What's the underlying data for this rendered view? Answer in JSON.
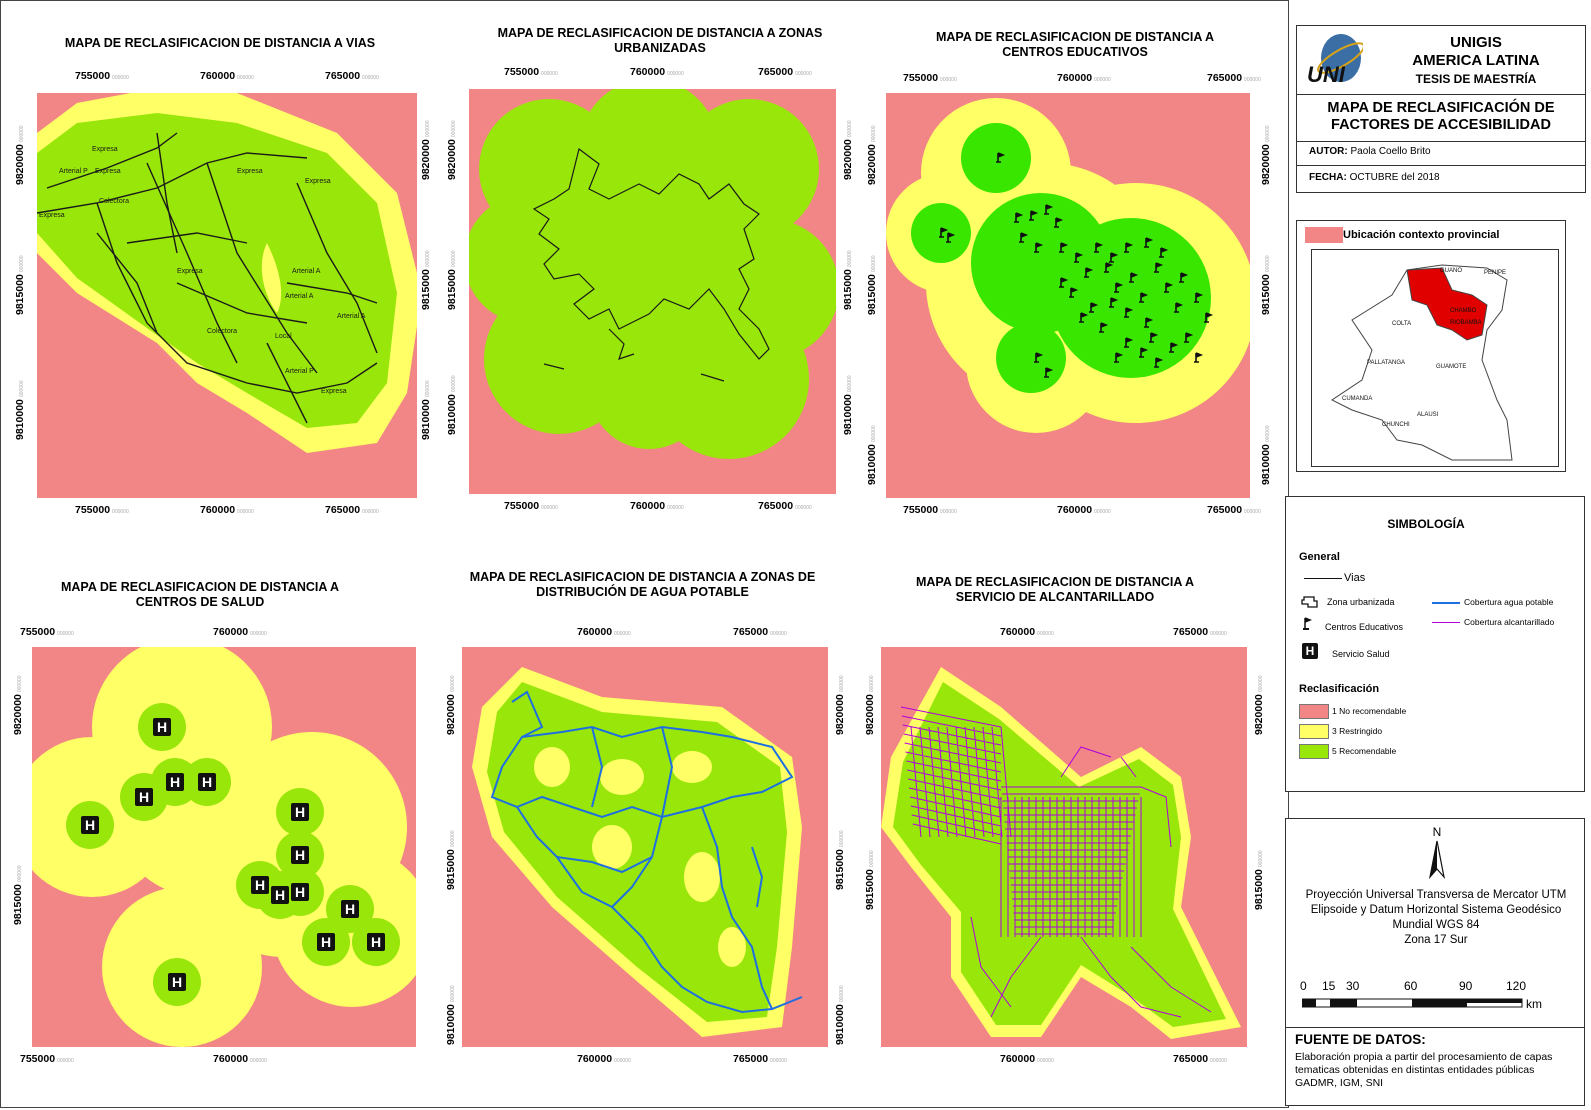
{
  "maps": [
    {
      "title": "MAPA DE RECLASIFICACION DE DISTANCIA A VIAS",
      "x_top": [
        "755000",
        "760000",
        "765000"
      ],
      "x_bottom": [
        "755000",
        "760000",
        "765000"
      ],
      "y_left": [
        "9820000",
        "9815000",
        "9810000"
      ],
      "y_right": [
        "9820000",
        "9815000",
        "9810000"
      ],
      "road_labels": [
        "Expresa",
        "Arterial P",
        "Expresa",
        "Expresa",
        "Colectora",
        "Expresa",
        "Expresa",
        "Arterial A",
        "Arterial A",
        "Local",
        "Arterial P",
        "Colectora",
        "Arterial A",
        "Expresa",
        "Expresa"
      ]
    },
    {
      "title": "MAPA DE RECLASIFICACION DE DISTANCIA A ZONAS URBANIZADAS",
      "x_top": [
        "755000",
        "760000",
        "765000"
      ],
      "x_bottom": [
        "755000",
        "760000",
        "765000"
      ],
      "y_left": [
        "9820000",
        "9815000",
        "9810000"
      ],
      "y_right": [
        "9820000",
        "9815000",
        "9810000"
      ]
    },
    {
      "title": "MAPA DE RECLASIFICACION DE DISTANCIA A CENTROS EDUCATIVOS",
      "x_top": [
        "755000",
        "760000",
        "765000"
      ],
      "x_bottom": [
        "755000",
        "760000",
        "765000"
      ],
      "y_left": [
        "9820000",
        "9815000",
        "9810000"
      ],
      "y_right": [
        "9820000",
        "9815000",
        "9810000"
      ]
    },
    {
      "title": "MAPA DE RECLASIFICACION DE DISTANCIA A CENTROS DE SALUD",
      "x_top": [
        "755000",
        "760000"
      ],
      "x_bottom": [
        "755000",
        "760000"
      ],
      "y_left": [
        "9820000",
        "9815000"
      ],
      "y_right": []
    },
    {
      "title": "MAPA DE RECLASIFICACION DE DISTANCIA A ZONAS DE DISTRIBUCIÓN DE AGUA POTABLE",
      "x_top": [
        "760000",
        "765000"
      ],
      "x_bottom": [
        "760000",
        "765000"
      ],
      "y_left": [
        "9820000",
        "9815000",
        "9810000"
      ],
      "y_right": [
        "9820000",
        "9815000",
        "9810000"
      ]
    },
    {
      "title": "MAPA DE RECLASIFICACION DE DISTANCIA A SERVICIO DE ALCANTARILLADO",
      "x_top": [
        "760000",
        "765000"
      ],
      "x_bottom": [
        "760000",
        "765000"
      ],
      "y_left": [
        "9820000",
        "9815000"
      ],
      "y_right": [
        "9820000",
        "9815000"
      ]
    }
  ],
  "tick_suffix": "000000",
  "title_block": {
    "line1": "UNIGIS",
    "line2": "AMERICA LATINA",
    "line3": "TESIS DE MAESTRÍA",
    "logo_text": "UNI",
    "map_title": "MAPA DE RECLASIFICACIÓN DE FACTORES DE ACCESIBILIDAD",
    "author_label": "AUTOR:",
    "author": "Paola Coello Brito",
    "date_label": "FECHA:",
    "date": "OCTUBRE del 2018"
  },
  "location": {
    "title": "Ubicación contexto provincial",
    "places": [
      "GUANO",
      "PENIPE",
      "CHAMBO",
      "RIOBAMBA",
      "COLTA",
      "PALLATANGA",
      "GUAMOTE",
      "CUMANDA",
      "ALAUSI",
      "CHUNCHI"
    ]
  },
  "legend": {
    "title": "SIMBOLOGÍA",
    "general": "General",
    "vias": "Vias",
    "zona": "Zona urbanizada",
    "educ": "Centros Educativos",
    "salud": "Servicio Salud",
    "agua": "Cobertura agua potable",
    "alc": "Cobertura alcantarillado",
    "reclass": "Reclasificación",
    "classes": [
      {
        "label": "1 No recomendable",
        "color": "#F28585"
      },
      {
        "label": "3 Restringido",
        "color": "#FFFF66"
      },
      {
        "label": "5 Recomendable",
        "color": "#99E60A"
      }
    ]
  },
  "projection": {
    "north": "N",
    "lines": [
      "Proyección Universal Transversa de Mercator UTM",
      "Elipsoide y Datum Horizontal Sistema Geodésico",
      "Mundial WGS 84",
      "Zona 17 Sur"
    ],
    "scale": [
      "0",
      "15",
      "30",
      "60",
      "90",
      "120"
    ],
    "unit": "km"
  },
  "source": {
    "title": "FUENTE DE DATOS:",
    "text": "Elaboración propia a partir del procesamiento de capas tematicas obtenidas en distintas entidades públicas GADMR, IGM, SNI"
  },
  "colors": {
    "red": "#F28585",
    "yellow": "#FFFF66",
    "green": "#99E60A",
    "green2": "#39E600",
    "water": "#1E6FE0",
    "sewer": "#B000E0"
  }
}
